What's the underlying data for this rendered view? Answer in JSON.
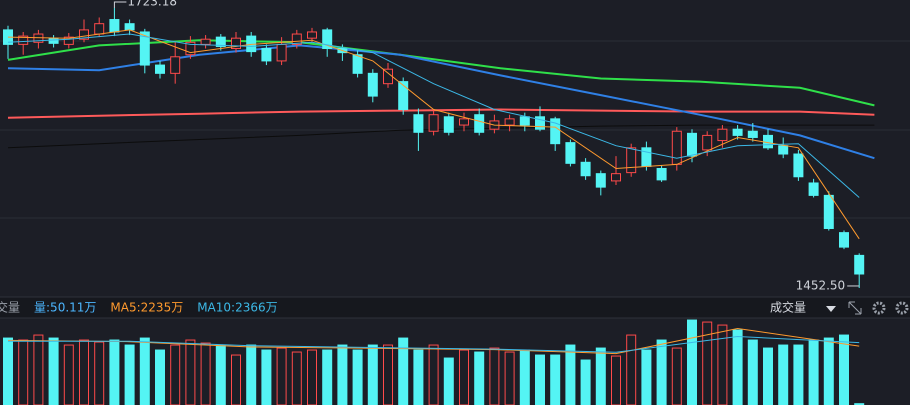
{
  "chart_data": {
    "type": "candlestick",
    "price": {
      "ylim": [
        1445.7,
        1730.9
      ],
      "up_color": "#ff4a4a",
      "down_color": "#54f4f4",
      "open": [
        1702,
        1688,
        1690,
        1694,
        1688,
        1693,
        1698,
        1712,
        1708,
        1700,
        1668,
        1660,
        1678,
        1688,
        1695,
        1684,
        1696,
        1684,
        1672,
        1688,
        1694,
        1702,
        1684,
        1678,
        1660,
        1650,
        1652,
        1620,
        1604,
        1618,
        1610,
        1620,
        1606,
        1610,
        1618,
        1618,
        1616,
        1593,
        1574,
        1563,
        1556,
        1564,
        1588,
        1568,
        1572,
        1602,
        1586,
        1595,
        1606,
        1604,
        1600,
        1590,
        1582,
        1554,
        1542,
        1506,
        1484
      ],
      "close": [
        1688,
        1696,
        1698,
        1689,
        1695,
        1702,
        1708,
        1700,
        1702,
        1668,
        1660,
        1676,
        1690,
        1693,
        1686,
        1694,
        1681,
        1672,
        1688,
        1698,
        1700,
        1684,
        1680,
        1660,
        1638,
        1664,
        1625,
        1603,
        1620,
        1603,
        1616,
        1603,
        1614,
        1616,
        1610,
        1606,
        1592,
        1573,
        1561,
        1550,
        1563,
        1588,
        1570,
        1557,
        1604,
        1580,
        1600,
        1606,
        1600,
        1598,
        1588,
        1582,
        1560,
        1542,
        1510,
        1492,
        1466
      ],
      "high": [
        1706,
        1700,
        1702,
        1697,
        1699,
        1712,
        1714,
        1723.18,
        1712,
        1703,
        1672,
        1690,
        1696,
        1697,
        1698,
        1700,
        1700,
        1688,
        1695,
        1702,
        1704,
        1704,
        1688,
        1682,
        1664,
        1670,
        1656,
        1626,
        1624,
        1622,
        1622,
        1626,
        1620,
        1620,
        1622,
        1628,
        1618,
        1596,
        1578,
        1566,
        1580,
        1592,
        1594,
        1571,
        1608,
        1606,
        1604,
        1610,
        1610,
        1612,
        1606,
        1598,
        1586,
        1558,
        1546,
        1508,
        1486
      ],
      "low": [
        1674,
        1678,
        1684,
        1685,
        1684,
        1690,
        1695,
        1696,
        1697,
        1660,
        1655,
        1650,
        1674,
        1684,
        1682,
        1680,
        1676,
        1668,
        1668,
        1684,
        1690,
        1676,
        1672,
        1656,
        1632,
        1646,
        1620,
        1585,
        1600,
        1600,
        1604,
        1600,
        1602,
        1604,
        1604,
        1604,
        1585,
        1570,
        1557,
        1542,
        1552,
        1560,
        1566,
        1555,
        1566,
        1574,
        1580,
        1588,
        1596,
        1594,
        1586,
        1578,
        1556,
        1540,
        1508,
        1490,
        1452.5
      ],
      "low_labels": [
        null,
        null,
        null,
        null,
        null,
        null,
        null,
        null,
        null,
        null,
        null,
        null,
        null,
        null,
        null,
        null,
        null,
        null,
        null,
        null,
        null,
        null,
        null,
        null,
        null,
        null,
        null,
        null,
        null,
        null,
        null,
        null,
        null,
        null,
        null,
        null,
        null,
        null,
        null,
        null,
        null,
        null,
        null,
        null,
        null,
        null,
        null,
        null,
        null,
        null,
        null,
        null,
        null,
        null,
        null,
        null,
        "1452.50"
      ],
      "lines": [
        {
          "color": "#ff9a2e",
          "width": 1,
          "x": [
            0,
            4,
            8,
            12,
            16,
            20,
            24,
            28,
            32,
            36,
            40,
            44,
            48,
            52,
            56
          ],
          "values": [
            1695,
            1694,
            1702,
            1680,
            1688,
            1692,
            1672,
            1625,
            1610,
            1608,
            1568,
            1572,
            1598,
            1588,
            1500
          ]
        },
        {
          "color": "#3cb8e6",
          "width": 1,
          "x": [
            0,
            4,
            8,
            12,
            16,
            20,
            24,
            28,
            32,
            36,
            40,
            44,
            48,
            52,
            56
          ],
          "values": [
            1690,
            1693,
            1698,
            1688,
            1686,
            1690,
            1680,
            1650,
            1625,
            1612,
            1590,
            1578,
            1590,
            1592,
            1540
          ]
        },
        {
          "color": "#2f80e6",
          "width": 2,
          "x": [
            0,
            6,
            12.6,
            19.2,
            25.8,
            32.4,
            39,
            45.5,
            52.1,
            57
          ],
          "values": [
            1665,
            1663,
            1678,
            1687,
            1678,
            1658,
            1639,
            1620,
            1600,
            1578
          ]
        },
        {
          "color": "#2fe04a",
          "width": 2,
          "x": [
            0,
            6,
            12.6,
            19.2,
            25.8,
            32.4,
            39,
            45.5,
            52.1,
            57
          ],
          "values": [
            1673,
            1687,
            1692,
            1690,
            1678,
            1665,
            1655,
            1652,
            1646,
            1629
          ]
        },
        {
          "color": "#ff5a5a",
          "width": 2,
          "x": [
            0,
            6,
            12.6,
            19.2,
            25.8,
            32.4,
            39,
            45.5,
            52.1,
            57
          ],
          "values": [
            1617,
            1619,
            1621,
            1623,
            1624,
            1625,
            1624,
            1623,
            1623,
            1620
          ]
        },
        {
          "color": "#0c0c0c",
          "width": 1,
          "x": [
            0,
            6,
            12.6,
            19.2,
            25.8,
            32.4,
            39,
            45.5,
            52.1,
            57
          ],
          "values": [
            1588,
            1592,
            1596,
            1600,
            1605,
            1607,
            1609,
            1610,
            1610,
            1610
          ]
        }
      ]
    },
    "volume": {
      "ylim": [
        0,
        3300
      ],
      "values": [
        2539,
        2464,
        2653,
        2539,
        2274,
        2464,
        2388,
        2464,
        2274,
        2539,
        2085,
        2274,
        2464,
        2350,
        2274,
        1895,
        2274,
        2085,
        2160,
        2009,
        2085,
        2085,
        2274,
        2085,
        2274,
        2274,
        2539,
        2085,
        2274,
        1781,
        2085,
        2009,
        2160,
        2009,
        2085,
        1895,
        1895,
        2274,
        1706,
        2160,
        1857,
        2653,
        2085,
        2464,
        2160,
        3222,
        3146,
        3032,
        2843,
        2464,
        2160,
        2274,
        2274,
        2464,
        2539,
        2653,
        50.11
      ],
      "legend": [
        {
          "text": "交量",
          "color": "#9aa0aa"
        },
        {
          "text": "量:50.11万",
          "color": "#4cb6ff"
        },
        {
          "text": "MA5:2235万",
          "color": "#ff9a2e"
        },
        {
          "text": "MA10:2366万",
          "color": "#3cb8e6"
        }
      ],
      "selector": "成交量",
      "lines": [
        {
          "color": "#ff9a2e",
          "x": [
            0,
            8,
            16,
            24,
            32,
            40,
            48,
            56
          ],
          "values": [
            2450,
            2400,
            2200,
            2150,
            2100,
            1950,
            2900,
            2235
          ]
        },
        {
          "color": "#3cb8e6",
          "x": [
            0,
            8,
            16,
            24,
            32,
            40,
            48,
            56
          ],
          "values": [
            2420,
            2420,
            2250,
            2180,
            2120,
            2000,
            2600,
            2366
          ]
        }
      ]
    }
  }
}
